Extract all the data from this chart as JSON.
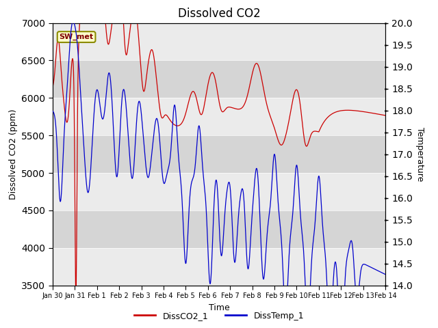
{
  "title": "Dissolved CO2",
  "xlabel": "Time",
  "ylabel_left": "Dissolved CO2 (ppm)",
  "ylabel_right": "Temperature",
  "ylim_left": [
    3500,
    7000
  ],
  "ylim_right": [
    14.0,
    20.0
  ],
  "xtick_labels": [
    "Jan 30",
    "Jan 31",
    "Feb 1",
    "Feb 2",
    "Feb 3",
    "Feb 4",
    "Feb 5",
    "Feb 6",
    "Feb 7",
    "Feb 8",
    "Feb 9",
    "Feb 10",
    "Feb 11",
    "Feb 12",
    "Feb 13",
    "Feb 14"
  ],
  "annotation_text": "SW_met",
  "legend_labels": [
    "DissCO2_1",
    "DissTemp_1"
  ],
  "line_colors": [
    "#cc0000",
    "#0000cc"
  ],
  "background_color": "#ffffff",
  "plot_bg_color": "#e0e0e0",
  "band_color_light": "#ebebeb",
  "band_color_dark": "#d5d5d5",
  "title_fontsize": 12,
  "xmin": 0,
  "xmax": 15,
  "yticks_left": [
    3500,
    4000,
    4500,
    5000,
    5500,
    6000,
    6500,
    7000
  ],
  "yticks_right": [
    14.0,
    14.5,
    15.0,
    15.5,
    16.0,
    16.5,
    17.0,
    17.5,
    18.0,
    18.5,
    19.0,
    19.5,
    20.0
  ]
}
